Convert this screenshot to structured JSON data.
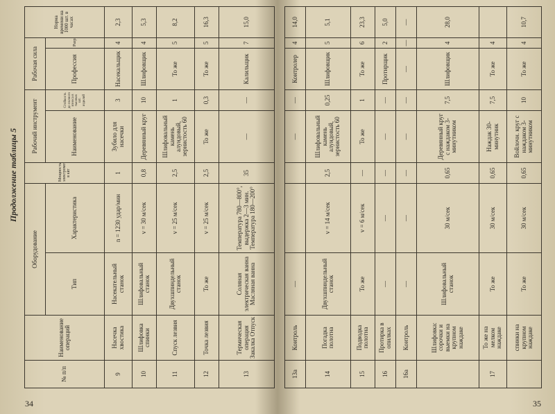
{
  "header": {
    "caption": "Продолжение таблицы 5",
    "page_left": "34",
    "page_right": "35"
  },
  "table": {
    "headers": {
      "num": "№ п/п",
      "operation": "Наименование операций",
      "equipment": "Оборудование",
      "equipment_type": "Тип",
      "equipment_spec": "Характеристика",
      "power": "Мощность электромотора в квт",
      "tool": "Рабочий инструмент",
      "tool_name": "Наименование",
      "tool_life": "Стойкость до полного износа в тысячах шт. изделий",
      "labor": "Рабочая сила",
      "profession": "Профессия",
      "grade": "Разряд",
      "norm": "Норма времени на 1000 шт. в часах"
    },
    "rows_left": [
      [
        "9",
        "Насечка хвостика",
        "Насекательный станок",
        "n = 1230 удар/мин",
        "1",
        "Зубило для насечки",
        "3",
        "Насекальщик",
        "4",
        "2,3"
      ],
      [
        "10",
        "Шлифовка спинки",
        "Шлифовальный станок",
        "v = 30 м/сек",
        "0,8",
        "Деревянный круг",
        "10",
        "Шлифовщик",
        "4",
        "5,3"
      ],
      [
        "11",
        "Спуск лезвия",
        "Двухшпиндельный станок",
        "v = 25 м/сек",
        "2,5",
        "Шлифовальный камень алундовый, зернистость 60",
        "1",
        "То же",
        "5",
        "8,2"
      ],
      [
        "12",
        "Точка лезвия",
        "То же",
        "v = 25 м/сек",
        "2,5",
        "То же",
        "0,3",
        "То же",
        "5",
        "16,3"
      ],
      [
        "13",
        "Термическая операция Закалка Отпуск",
        "Соляная электрическая ванна Масляная ванна",
        "Температура 780—800°, выдержка 2—3 мин. Температура 180—200°",
        "35",
        "—",
        "—",
        "Калильщик",
        "7",
        "15,0"
      ]
    ],
    "rows_right": [
      [
        "13а",
        "Контроль",
        "—",
        null,
        null,
        "—",
        "—",
        "Контролер",
        "4",
        "14,0"
      ],
      [
        "14",
        "Погадка полотна",
        "Двухшпиндельный станок",
        "v = 14 м/сек",
        "2,5",
        "Шлифовальный камень алундовый, зернистость 60",
        "0,25",
        "Шлифовщик",
        "5",
        "5,1"
      ],
      [
        "15",
        "Подводка полотна",
        "То же",
        "v = 6 м/сек",
        "—",
        "То же",
        "1",
        "То же",
        "6",
        "23,3"
      ],
      [
        "16",
        "Протирка в опилках",
        "—",
        "—",
        "—",
        "—",
        "—",
        "Протирщик",
        "2",
        "5,0"
      ],
      [
        "16а",
        "Контроль",
        "—",
        "—",
        "—",
        "—",
        "—",
        "—",
        "—",
        "—"
      ],
      [
        null,
        "Шлифовка: сорочки и выемки на крупном наждаке",
        "Шлифовальный станок",
        "30 м/сек",
        "0,65",
        "Деревянный круг с наждаком 3-минутником",
        "7,5",
        "Шлифовщик",
        "4",
        "28,0"
      ],
      [
        "17",
        "То же на мелком наждаке",
        "То же",
        "30 м/сек",
        "0,65",
        "Наждак 30-минутник",
        "7,5",
        "То же",
        "4",
        null
      ],
      [
        null,
        "спинки на крупном наждаке",
        "То же",
        "30 м/сек",
        "0,65",
        "Войлочн. круг с наждаком 3-минутником",
        "10",
        "То же",
        "4",
        "10,7"
      ]
    ]
  }
}
